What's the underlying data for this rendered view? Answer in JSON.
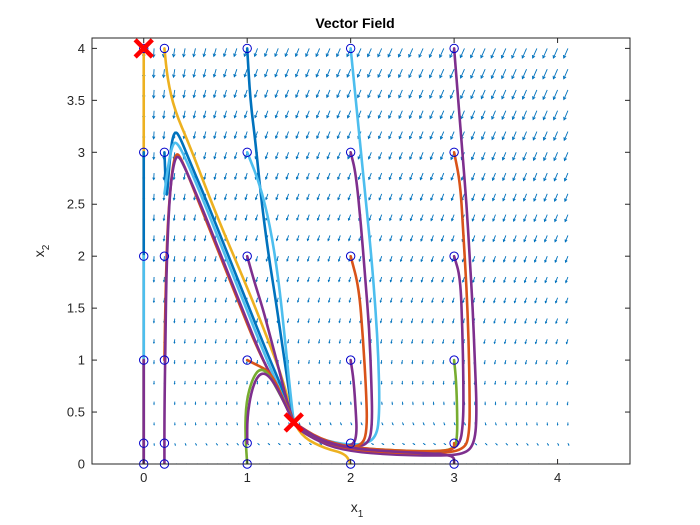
{
  "chart_data": {
    "type": "line",
    "title": "Vector Field",
    "xlabel_base": "x",
    "xlabel_sub": "1",
    "ylabel_base": "x",
    "ylabel_sub": "2",
    "xlim": [
      -0.5,
      4.7
    ],
    "ylim": [
      0,
      4.1
    ],
    "xticks": [
      0,
      1,
      2,
      3,
      4
    ],
    "xtick_labels": [
      "0",
      "1",
      "2",
      "3",
      "4"
    ],
    "yticks": [
      0,
      0.5,
      1,
      1.5,
      2,
      2.5,
      3,
      3.5,
      4
    ],
    "ytick_labels": [
      "0",
      "0.5",
      "1",
      "1.5",
      "2",
      "2.5",
      "3",
      "3.5",
      "4"
    ],
    "grid": false,
    "vector_field": {
      "color": "#0072BD",
      "x_range": [
        0,
        4.1
      ],
      "y_range": [
        0,
        4
      ],
      "x_step": 0.1,
      "y_step": 0.2
    },
    "equilibria": [
      {
        "x": 0,
        "y": 4
      },
      {
        "x": 1.45,
        "y": 0.4
      }
    ],
    "equilibrium_color": "#FF0000",
    "initial_conditions_color": "#0000CC",
    "initial_conditions": [
      {
        "x": 0,
        "y": 4
      },
      {
        "x": 0,
        "y": 3
      },
      {
        "x": 0,
        "y": 2
      },
      {
        "x": 0,
        "y": 1
      },
      {
        "x": 0,
        "y": 0.2
      },
      {
        "x": 0,
        "y": 0
      },
      {
        "x": 0.2,
        "y": 4
      },
      {
        "x": 0.2,
        "y": 3
      },
      {
        "x": 0.2,
        "y": 2
      },
      {
        "x": 0.2,
        "y": 1
      },
      {
        "x": 0.2,
        "y": 0.2
      },
      {
        "x": 0.2,
        "y": 0
      },
      {
        "x": 1,
        "y": 4
      },
      {
        "x": 1,
        "y": 3
      },
      {
        "x": 1,
        "y": 2
      },
      {
        "x": 1,
        "y": 1
      },
      {
        "x": 1,
        "y": 0.2
      },
      {
        "x": 1,
        "y": 0
      },
      {
        "x": 2,
        "y": 4
      },
      {
        "x": 2,
        "y": 3
      },
      {
        "x": 2,
        "y": 2
      },
      {
        "x": 2,
        "y": 1
      },
      {
        "x": 2,
        "y": 0.2
      },
      {
        "x": 2,
        "y": 0
      },
      {
        "x": 3,
        "y": 4
      },
      {
        "x": 3,
        "y": 3
      },
      {
        "x": 3,
        "y": 2
      },
      {
        "x": 3,
        "y": 1
      },
      {
        "x": 3,
        "y": 0.2
      },
      {
        "x": 3,
        "y": 0
      }
    ],
    "trajectories": [
      {
        "color": "#EDB120",
        "points": [
          [
            0.0,
            4.0
          ],
          [
            0.0,
            3.0
          ],
          [
            0.0,
            2.0
          ],
          [
            0.0,
            1.0
          ],
          [
            0.0,
            0.2
          ],
          [
            0.0,
            0.0
          ]
        ]
      },
      {
        "color": "#0072BD",
        "points": [
          [
            0.0,
            3.0
          ],
          [
            0.0,
            2.0
          ],
          [
            0.0,
            1.0
          ],
          [
            0.0,
            0.2
          ],
          [
            0.0,
            0.0
          ]
        ]
      },
      {
        "color": "#4DBEEE",
        "points": [
          [
            0.0,
            2.0
          ],
          [
            0.0,
            1.0
          ],
          [
            0.0,
            0.2
          ],
          [
            0.0,
            0.0
          ]
        ]
      },
      {
        "color": "#D95319",
        "points": [
          [
            0.0,
            1.0
          ],
          [
            0.0,
            0.2
          ],
          [
            0.0,
            0.0
          ]
        ]
      },
      {
        "color": "#7E2F8E",
        "points": [
          [
            0.0,
            1.0
          ],
          [
            0.0,
            0.5
          ],
          [
            0.0,
            0.0
          ]
        ]
      },
      {
        "color": "#EDB120",
        "points": [
          [
            0.2,
            4.0
          ],
          [
            0.23,
            3.7
          ],
          [
            0.3,
            3.4
          ],
          [
            0.45,
            3.05
          ],
          [
            0.7,
            2.4
          ],
          [
            1.0,
            1.7
          ],
          [
            1.2,
            1.2
          ],
          [
            1.35,
            0.8
          ],
          [
            1.45,
            0.4
          ],
          [
            1.55,
            0.25
          ],
          [
            1.75,
            0.15
          ],
          [
            1.95,
            0.1
          ],
          [
            2.0,
            0.0
          ]
        ]
      },
      {
        "color": "#0072BD",
        "points": [
          [
            0.2,
            3.0
          ],
          [
            0.22,
            2.5
          ],
          [
            0.24,
            2.8
          ],
          [
            0.27,
            3.1
          ],
          [
            0.3,
            3.2
          ],
          [
            0.34,
            3.17
          ],
          [
            0.45,
            2.9
          ],
          [
            0.6,
            2.55
          ],
          [
            0.8,
            2.05
          ],
          [
            1.0,
            1.55
          ],
          [
            1.2,
            1.05
          ],
          [
            1.35,
            0.7
          ],
          [
            1.45,
            0.4
          ]
        ]
      },
      {
        "color": "#4DBEEE",
        "points": [
          [
            0.2,
            2.6
          ],
          [
            0.24,
            2.9
          ],
          [
            0.28,
            3.08
          ],
          [
            0.32,
            3.1
          ],
          [
            0.4,
            2.95
          ],
          [
            0.55,
            2.6
          ],
          [
            0.75,
            2.1
          ],
          [
            0.95,
            1.6
          ],
          [
            1.15,
            1.1
          ],
          [
            1.32,
            0.7
          ],
          [
            1.45,
            0.4
          ]
        ]
      },
      {
        "color": "#D95319",
        "points": [
          [
            0.2,
            1.0
          ],
          [
            0.21,
            1.6
          ],
          [
            0.23,
            2.3
          ],
          [
            0.27,
            2.8
          ],
          [
            0.31,
            3.0
          ],
          [
            0.36,
            2.95
          ],
          [
            0.5,
            2.6
          ],
          [
            0.7,
            2.1
          ],
          [
            0.9,
            1.6
          ],
          [
            1.1,
            1.1
          ],
          [
            1.3,
            0.72
          ],
          [
            1.45,
            0.4
          ]
        ]
      },
      {
        "color": "#7E2F8E",
        "points": [
          [
            0.2,
            0.0
          ],
          [
            0.2,
            0.5
          ],
          [
            0.21,
            1.2
          ],
          [
            0.22,
            1.9
          ],
          [
            0.25,
            2.6
          ],
          [
            0.29,
            2.9
          ],
          [
            0.33,
            2.98
          ],
          [
            0.4,
            2.85
          ],
          [
            0.55,
            2.5
          ],
          [
            0.75,
            2.0
          ],
          [
            0.95,
            1.5
          ],
          [
            1.15,
            1.0
          ],
          [
            1.32,
            0.68
          ],
          [
            1.45,
            0.4
          ]
        ]
      },
      {
        "color": "#0072BD",
        "points": [
          [
            1.0,
            4.0
          ],
          [
            1.03,
            3.5
          ],
          [
            1.08,
            3.1
          ],
          [
            1.13,
            2.6
          ],
          [
            1.2,
            2.05
          ],
          [
            1.28,
            1.55
          ],
          [
            1.36,
            1.0
          ],
          [
            1.42,
            0.6
          ],
          [
            1.45,
            0.4
          ]
        ]
      },
      {
        "color": "#4DBEEE",
        "points": [
          [
            1.0,
            3.0
          ],
          [
            1.12,
            2.7
          ],
          [
            1.22,
            2.3
          ],
          [
            1.3,
            1.8
          ],
          [
            1.36,
            1.25
          ],
          [
            1.41,
            0.75
          ],
          [
            1.45,
            0.4
          ]
        ]
      },
      {
        "color": "#7E2F8E",
        "points": [
          [
            1.0,
            2.0
          ],
          [
            1.07,
            1.75
          ],
          [
            1.15,
            1.5
          ],
          [
            1.23,
            1.2
          ],
          [
            1.31,
            0.9
          ],
          [
            1.38,
            0.62
          ],
          [
            1.45,
            0.4
          ]
        ]
      },
      {
        "color": "#D95319",
        "points": [
          [
            1.0,
            1.0
          ],
          [
            1.1,
            0.95
          ],
          [
            1.2,
            0.9
          ],
          [
            1.28,
            0.78
          ],
          [
            1.35,
            0.62
          ],
          [
            1.41,
            0.5
          ],
          [
            1.45,
            0.4
          ]
        ]
      },
      {
        "color": "#77AC30",
        "points": [
          [
            1.0,
            0.0
          ],
          [
            0.98,
            0.3
          ],
          [
            0.99,
            0.6
          ],
          [
            1.05,
            0.82
          ],
          [
            1.12,
            0.92
          ],
          [
            1.2,
            0.88
          ],
          [
            1.3,
            0.7
          ],
          [
            1.38,
            0.55
          ],
          [
            1.45,
            0.4
          ]
        ]
      },
      {
        "color": "#7E2F8E",
        "points": [
          [
            1.0,
            0.2
          ],
          [
            1.0,
            0.45
          ],
          [
            1.04,
            0.7
          ],
          [
            1.1,
            0.85
          ],
          [
            1.17,
            0.88
          ],
          [
            1.25,
            0.8
          ],
          [
            1.33,
            0.65
          ],
          [
            1.4,
            0.5
          ],
          [
            1.45,
            0.4
          ]
        ]
      },
      {
        "color": "#4DBEEE",
        "points": [
          [
            2.0,
            4.0
          ],
          [
            2.05,
            3.5
          ],
          [
            2.1,
            3.0
          ],
          [
            2.15,
            2.5
          ],
          [
            2.2,
            2.0
          ],
          [
            2.24,
            1.5
          ],
          [
            2.27,
            1.0
          ],
          [
            2.28,
            0.5
          ],
          [
            2.25,
            0.25
          ],
          [
            2.1,
            0.18
          ],
          [
            1.85,
            0.2
          ],
          [
            1.6,
            0.28
          ],
          [
            1.45,
            0.4
          ]
        ]
      },
      {
        "color": "#7E2F8E",
        "points": [
          [
            2.0,
            3.0
          ],
          [
            2.05,
            2.8
          ],
          [
            2.1,
            2.3
          ],
          [
            2.14,
            1.8
          ],
          [
            2.18,
            1.3
          ],
          [
            2.2,
            0.8
          ],
          [
            2.21,
            0.4
          ],
          [
            2.18,
            0.2
          ],
          [
            2.05,
            0.16
          ],
          [
            1.8,
            0.2
          ],
          [
            1.6,
            0.27
          ],
          [
            1.45,
            0.4
          ]
        ]
      },
      {
        "color": "#D95319",
        "points": [
          [
            2.0,
            2.0
          ],
          [
            2.08,
            1.7
          ],
          [
            2.12,
            1.2
          ],
          [
            2.15,
            0.7
          ],
          [
            2.16,
            0.35
          ],
          [
            2.12,
            0.18
          ],
          [
            1.95,
            0.16
          ],
          [
            1.75,
            0.2
          ],
          [
            1.55,
            0.3
          ],
          [
            1.45,
            0.4
          ]
        ]
      },
      {
        "color": "#7E2F8E",
        "points": [
          [
            2.0,
            1.0
          ],
          [
            2.03,
            0.8
          ],
          [
            2.05,
            0.5
          ],
          [
            2.06,
            0.3
          ],
          [
            2.03,
            0.18
          ],
          [
            1.9,
            0.17
          ],
          [
            1.7,
            0.21
          ],
          [
            1.5,
            0.33
          ],
          [
            1.45,
            0.4
          ]
        ]
      },
      {
        "color": "#7E2F8E",
        "points": [
          [
            3.0,
            4.0
          ],
          [
            3.04,
            3.5
          ],
          [
            3.08,
            3.0
          ],
          [
            3.12,
            2.5
          ],
          [
            3.15,
            2.0
          ],
          [
            3.18,
            1.5
          ],
          [
            3.2,
            1.0
          ],
          [
            3.22,
            0.5
          ],
          [
            3.2,
            0.2
          ],
          [
            3.1,
            0.09
          ],
          [
            2.8,
            0.08
          ],
          [
            2.4,
            0.09
          ],
          [
            2.0,
            0.12
          ],
          [
            1.7,
            0.2
          ],
          [
            1.45,
            0.4
          ]
        ]
      },
      {
        "color": "#D95319",
        "points": [
          [
            3.0,
            3.0
          ],
          [
            3.06,
            2.7
          ],
          [
            3.09,
            2.2
          ],
          [
            3.12,
            1.7
          ],
          [
            3.14,
            1.2
          ],
          [
            3.15,
            0.7
          ],
          [
            3.15,
            0.3
          ],
          [
            3.1,
            0.13
          ],
          [
            2.8,
            0.1
          ],
          [
            2.4,
            0.11
          ],
          [
            2.0,
            0.14
          ],
          [
            1.7,
            0.22
          ],
          [
            1.45,
            0.4
          ]
        ]
      },
      {
        "color": "#7E2F8E",
        "points": [
          [
            3.0,
            2.0
          ],
          [
            3.06,
            1.8
          ],
          [
            3.08,
            1.3
          ],
          [
            3.09,
            0.8
          ],
          [
            3.09,
            0.4
          ],
          [
            3.05,
            0.15
          ],
          [
            2.8,
            0.11
          ],
          [
            2.4,
            0.12
          ],
          [
            2.0,
            0.15
          ],
          [
            1.7,
            0.22
          ],
          [
            1.45,
            0.4
          ]
        ]
      },
      {
        "color": "#77AC30",
        "points": [
          [
            3.0,
            1.0
          ],
          [
            3.02,
            0.8
          ],
          [
            3.03,
            0.5
          ],
          [
            3.03,
            0.25
          ],
          [
            3.0,
            0.14
          ],
          [
            2.8,
            0.12
          ],
          [
            2.4,
            0.13
          ],
          [
            2.0,
            0.16
          ],
          [
            1.7,
            0.23
          ],
          [
            1.45,
            0.4
          ]
        ]
      },
      {
        "color": "#D95319",
        "points": [
          [
            3.0,
            0.2
          ],
          [
            3.0,
            0.14
          ],
          [
            2.8,
            0.12
          ],
          [
            2.4,
            0.13
          ],
          [
            2.0,
            0.16
          ],
          [
            1.7,
            0.24
          ],
          [
            1.45,
            0.4
          ]
        ]
      },
      {
        "color": "#7E2F8E",
        "points": [
          [
            3.0,
            0.0
          ],
          [
            3.0,
            0.08
          ],
          [
            2.8,
            0.1
          ],
          [
            2.4,
            0.12
          ],
          [
            2.0,
            0.15
          ],
          [
            1.7,
            0.23
          ],
          [
            1.45,
            0.4
          ]
        ]
      }
    ]
  }
}
